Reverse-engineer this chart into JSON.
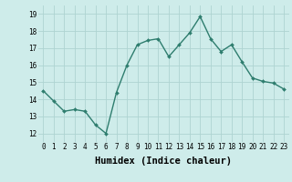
{
  "x": [
    0,
    1,
    2,
    3,
    4,
    5,
    6,
    7,
    8,
    9,
    10,
    11,
    12,
    13,
    14,
    15,
    16,
    17,
    18,
    19,
    20,
    21,
    22,
    23
  ],
  "y": [
    14.5,
    13.9,
    13.3,
    13.4,
    13.3,
    12.5,
    12.0,
    14.4,
    16.0,
    17.2,
    17.45,
    17.55,
    16.5,
    17.2,
    17.9,
    18.85,
    17.55,
    16.8,
    17.2,
    16.2,
    15.25,
    15.05,
    14.95,
    14.6
  ],
  "line_color": "#2e7d6e",
  "marker": "D",
  "marker_size": 2.0,
  "line_width": 1.0,
  "bg_color": "#ceecea",
  "grid_color": "#aed4d1",
  "xlabel": "Humidex (Indice chaleur)",
  "xlim": [
    -0.5,
    23.5
  ],
  "ylim": [
    11.5,
    19.5
  ],
  "yticks": [
    12,
    13,
    14,
    15,
    16,
    17,
    18,
    19
  ],
  "xticks": [
    0,
    1,
    2,
    3,
    4,
    5,
    6,
    7,
    8,
    9,
    10,
    11,
    12,
    13,
    14,
    15,
    16,
    17,
    18,
    19,
    20,
    21,
    22,
    23
  ],
  "tick_label_fontsize": 5.5,
  "xlabel_fontsize": 7.5
}
